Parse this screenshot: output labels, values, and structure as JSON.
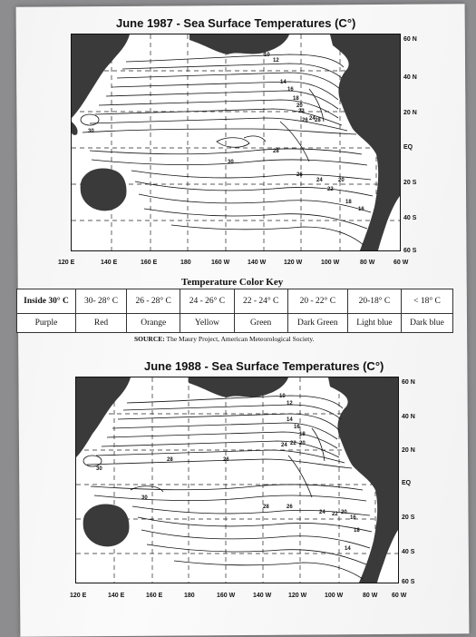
{
  "map1": {
    "title": "June 1987 - Sea Surface Temperatures (C°)",
    "lat_labels": [
      "60 N",
      "40 N",
      "20 N",
      "EQ",
      "20 S",
      "40 S",
      "60 S"
    ],
    "lon_labels": [
      "120 E",
      "140 E",
      "160 E",
      "180",
      "160 W",
      "140 W",
      "120 W",
      "100 W",
      "80 W",
      "60 W"
    ],
    "isotherm_labels": [
      "10",
      "12",
      "14",
      "16",
      "18",
      "20",
      "22",
      "24",
      "26",
      "28",
      "30",
      "30",
      "28",
      "26",
      "24",
      "22",
      "20",
      "18",
      "16"
    ]
  },
  "key": {
    "title": "Temperature Color Key",
    "ranges": [
      "Inside 30° C",
      "30- 28° C",
      "26 - 28° C",
      "24 - 26° C",
      "22 - 24° C",
      "20 - 22° C",
      "20-18° C",
      "< 18° C"
    ],
    "colors": [
      "Purple",
      "Red",
      "Orange",
      "Yellow",
      "Green",
      "Dark Green",
      "Light blue",
      "Dark blue"
    ],
    "source_label": "SOURCE:",
    "source_text": "The Maury Project, American Meteorological Society."
  },
  "map2": {
    "title": "June 1988 - Sea Surface Temperatures (C°)",
    "lat_labels": [
      "60 N",
      "40 N",
      "20 N",
      "EQ",
      "20 S",
      "40 S",
      "60 S"
    ],
    "lon_labels": [
      "120 E",
      "140 E",
      "160 E",
      "180",
      "160 W",
      "140 W",
      "120 W",
      "100 W",
      "80 W",
      "60 W"
    ],
    "isotherm_labels": [
      "10",
      "12",
      "14",
      "16",
      "18",
      "20",
      "22",
      "24",
      "26",
      "28",
      "30",
      "30",
      "28",
      "26",
      "24",
      "22",
      "20",
      "18",
      "16",
      "14"
    ]
  }
}
